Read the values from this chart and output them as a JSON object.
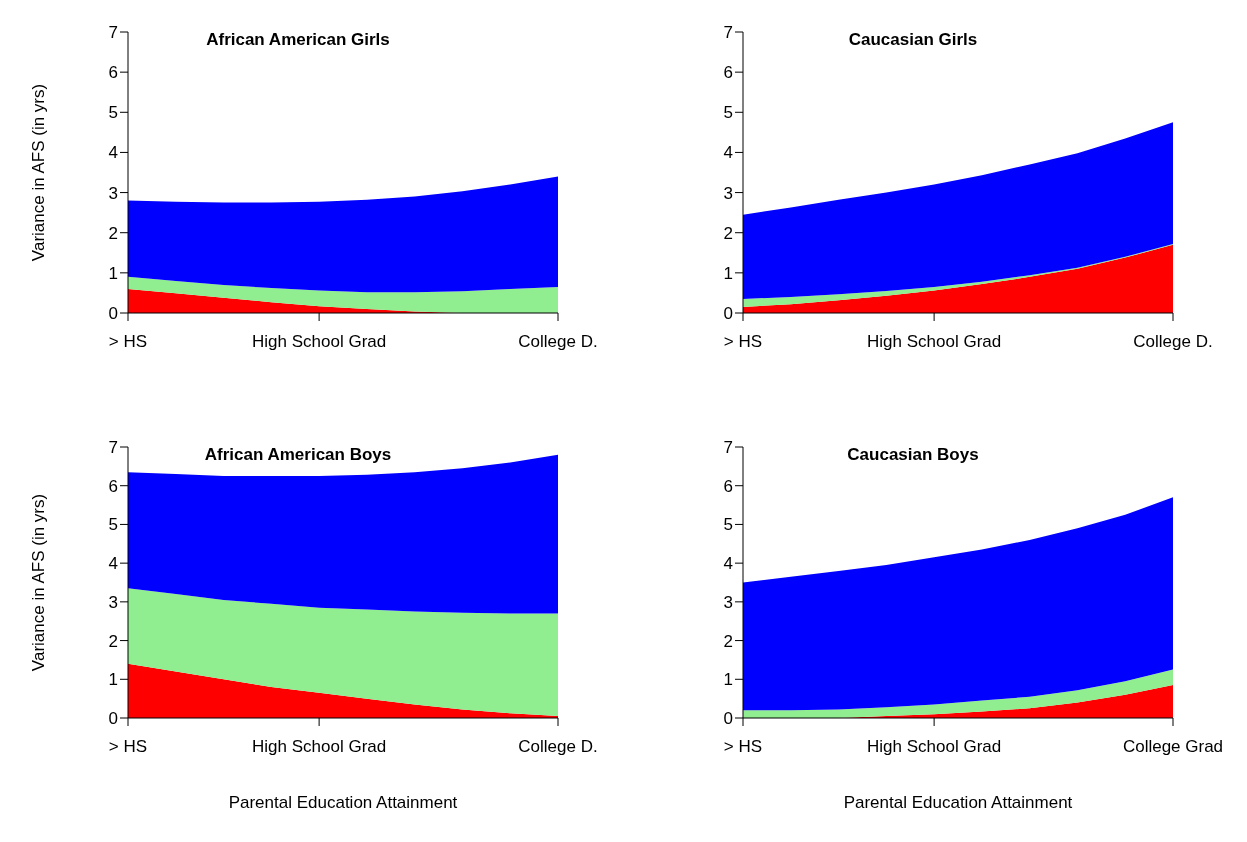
{
  "chart_data": [
    {
      "type": "area",
      "title": "African American Girls",
      "ylabel": "Variance in AFS (in yrs)",
      "stacked": true,
      "categories": [
        "> HS",
        null,
        null,
        null,
        "High School Grad",
        null,
        null,
        null,
        null,
        "College D."
      ],
      "ylim": [
        0,
        7
      ],
      "yticks": [
        0,
        1,
        2,
        3,
        4,
        5,
        6,
        7
      ],
      "grid": false,
      "legend": false,
      "series": [
        {
          "color": "#ff0000",
          "values": [
            0.6,
            0.49,
            0.38,
            0.27,
            0.17,
            0.1,
            0.04,
            0,
            0,
            0
          ]
        },
        {
          "color": "#90ee90",
          "values": [
            0.3,
            0.31,
            0.32,
            0.35,
            0.39,
            0.42,
            0.48,
            0.54,
            0.6,
            0.65
          ]
        },
        {
          "color": "#0000ff",
          "values": [
            1.9,
            1.97,
            2.05,
            2.13,
            2.21,
            2.3,
            2.38,
            2.49,
            2.6,
            2.75
          ]
        }
      ]
    },
    {
      "type": "area",
      "title": "Caucasian Girls",
      "stacked": true,
      "categories": [
        "> HS",
        null,
        null,
        null,
        "High School Grad",
        null,
        null,
        null,
        null,
        "College D."
      ],
      "ylim": [
        0,
        7
      ],
      "yticks": [
        0,
        1,
        2,
        3,
        4,
        5,
        6,
        7
      ],
      "grid": false,
      "legend": false,
      "series": [
        {
          "color": "#ff0000",
          "values": [
            0.15,
            0.22,
            0.32,
            0.43,
            0.56,
            0.72,
            0.9,
            1.1,
            1.38,
            1.7
          ]
        },
        {
          "color": "#90ee90",
          "values": [
            0.2,
            0.18,
            0.15,
            0.12,
            0.09,
            0.06,
            0.04,
            0.03,
            0.02,
            0.02
          ]
        },
        {
          "color": "#0000ff",
          "values": [
            2.1,
            2.23,
            2.35,
            2.45,
            2.55,
            2.65,
            2.76,
            2.85,
            2.95,
            3.03
          ]
        }
      ]
    },
    {
      "type": "area",
      "title": "African American Boys",
      "ylabel": "Variance in AFS (in yrs)",
      "xlabel": "Parental Education Attainment",
      "stacked": true,
      "categories": [
        "> HS",
        null,
        null,
        null,
        "High School Grad",
        null,
        null,
        null,
        null,
        "College D."
      ],
      "ylim": [
        0,
        7
      ],
      "yticks": [
        0,
        1,
        2,
        3,
        4,
        5,
        6,
        7
      ],
      "grid": false,
      "legend": false,
      "series": [
        {
          "color": "#ff0000",
          "values": [
            1.4,
            1.2,
            1.0,
            0.8,
            0.65,
            0.5,
            0.35,
            0.22,
            0.12,
            0.05
          ]
        },
        {
          "color": "#90ee90",
          "values": [
            1.95,
            2.0,
            2.05,
            2.15,
            2.2,
            2.3,
            2.4,
            2.5,
            2.58,
            2.65
          ]
        },
        {
          "color": "#0000ff",
          "values": [
            3.0,
            3.1,
            3.2,
            3.3,
            3.4,
            3.48,
            3.6,
            3.73,
            3.9,
            4.1
          ]
        }
      ]
    },
    {
      "type": "area",
      "title": "Caucasian Boys",
      "xlabel": "Parental Education Attainment",
      "stacked": true,
      "categories": [
        "> HS",
        null,
        null,
        null,
        "High School Grad",
        null,
        null,
        null,
        null,
        "College Grad"
      ],
      "ylim": [
        0,
        7
      ],
      "yticks": [
        0,
        1,
        2,
        3,
        4,
        5,
        6,
        7
      ],
      "grid": false,
      "legend": false,
      "series": [
        {
          "color": "#ff0000",
          "values": [
            0,
            0,
            0,
            0.05,
            0.1,
            0.17,
            0.25,
            0.4,
            0.6,
            0.85
          ]
        },
        {
          "color": "#90ee90",
          "values": [
            0.2,
            0.2,
            0.22,
            0.23,
            0.25,
            0.28,
            0.3,
            0.32,
            0.35,
            0.4
          ]
        },
        {
          "color": "#0000ff",
          "values": [
            3.3,
            3.45,
            3.58,
            3.67,
            3.8,
            3.9,
            4.05,
            4.18,
            4.3,
            4.45
          ]
        }
      ]
    }
  ]
}
